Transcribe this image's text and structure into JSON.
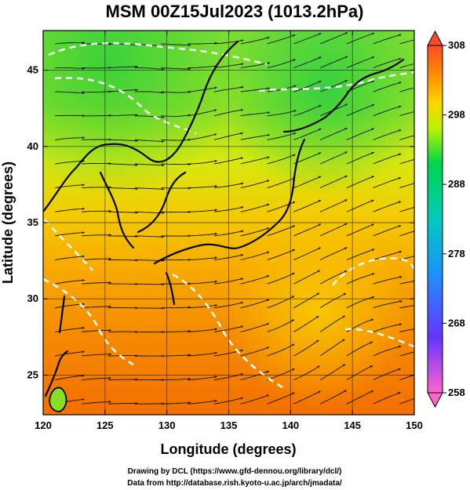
{
  "chart_data": {
    "type": "heatmap",
    "title": "MSM 00Z15Jul2023 (1013.2hPa)",
    "xlabel": "Longitude (degrees)",
    "ylabel": "Latitude  (degrees)",
    "xlim": [
      120,
      150
    ],
    "ylim": [
      22.4,
      47.6
    ],
    "x_ticks": [
      120,
      125,
      130,
      135,
      140,
      145,
      150
    ],
    "y_ticks": [
      25,
      30,
      35,
      40,
      45
    ],
    "grid": true,
    "colorbar": {
      "min": 258,
      "max": 308,
      "labels": [
        308,
        298,
        288,
        278,
        268,
        258
      ]
    },
    "field": "temperature with streamlines",
    "overlays": [
      "streamlines",
      "coastlines",
      "white contour lines"
    ]
  },
  "credits": {
    "line1": "Drawing by DCL (https://www.gfd-dennou.org/library/dcl/)",
    "line2": "Data from http://database.rish.kyoto-u.ac.jp/arch/jmadata/"
  }
}
